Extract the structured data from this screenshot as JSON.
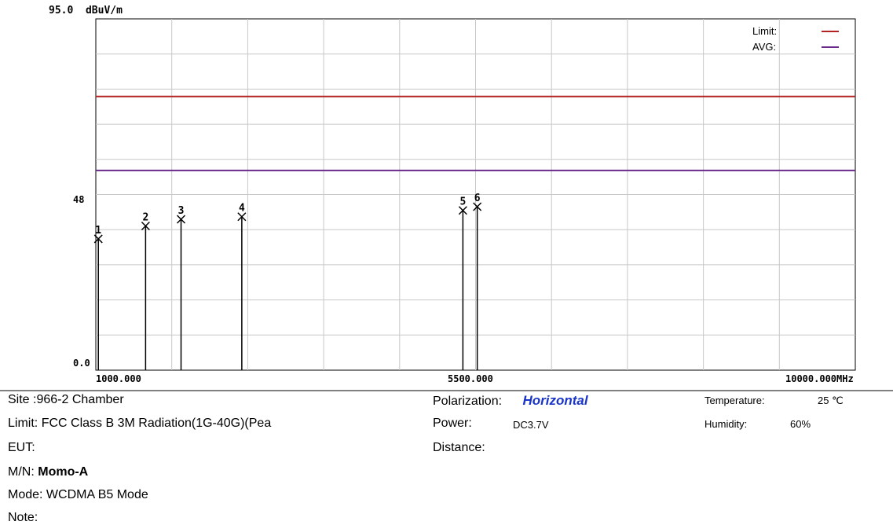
{
  "chart_data": {
    "type": "stem",
    "ylabel_top": "95.0  dBuV/m",
    "y_ticks": [
      "95.0",
      "48",
      "0.0"
    ],
    "ylim": [
      0,
      95
    ],
    "x_tick_labels": [
      "1000.000",
      "5500.000",
      "10000.000MHz"
    ],
    "xlim": [
      1000,
      10000
    ],
    "grid": true,
    "legend": {
      "position": "top-right",
      "items": [
        {
          "name": "Limit:",
          "color": "#b22222"
        },
        {
          "name": "AVG:",
          "color": "#6a2a8a"
        }
      ]
    },
    "limit_lines": [
      {
        "name": "Limit",
        "value": 74,
        "color": "#b22222"
      },
      {
        "name": "AVG",
        "value": 54,
        "color": "#6a2a8a"
      }
    ],
    "markers": [
      {
        "label": "1",
        "x": 1030,
        "y": 35.5
      },
      {
        "label": "2",
        "x": 1590,
        "y": 39.0
      },
      {
        "label": "3",
        "x": 2010,
        "y": 40.8
      },
      {
        "label": "4",
        "x": 2730,
        "y": 41.5
      },
      {
        "label": "5",
        "x": 5350,
        "y": 43.2
      },
      {
        "label": "6",
        "x": 5520,
        "y": 44.2
      }
    ]
  },
  "info": {
    "site_label": "Site",
    "site_value": ":966-2 Chamber",
    "limit_label": "Limit:",
    "limit_value": "FCC Class B 3M Radiation(1G-40G)(Pea",
    "eut_label": "EUT:",
    "mn_label": "M/N:",
    "mn_value": "Momo-A",
    "mode_label": "Mode:",
    "mode_value": "WCDMA B5 Mode",
    "note_label": "Note:",
    "polarization_label": "Polarization:",
    "polarization_value": "Horizontal",
    "power_label": "Power:",
    "power_value": "DC3.7V",
    "distance_label": "Distance:",
    "temperature_label": "Temperature:",
    "temperature_value": "25 ℃",
    "humidity_label": "Humidity:",
    "humidity_value": "60%"
  }
}
